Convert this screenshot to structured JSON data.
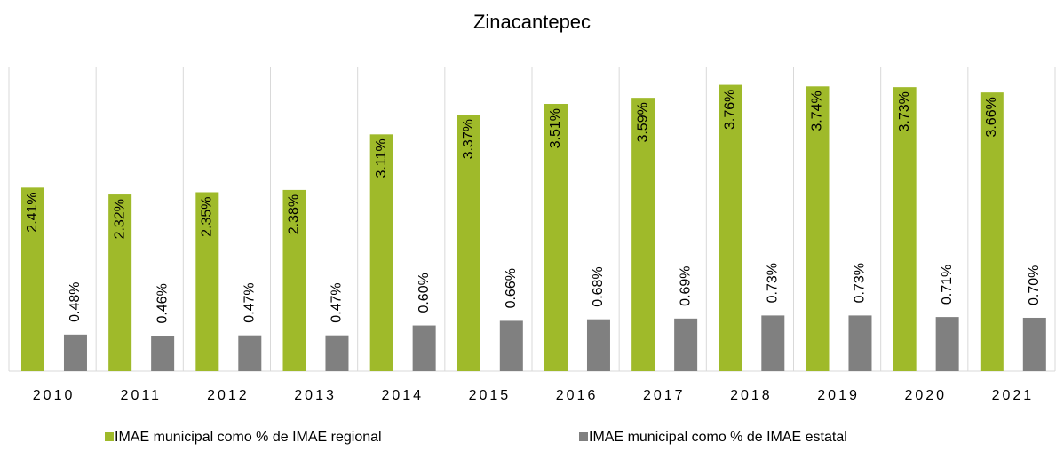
{
  "chart_data": {
    "type": "bar",
    "title": "Zinacantepec",
    "categories": [
      "2010",
      "2011",
      "2012",
      "2013",
      "2014",
      "2015",
      "2016",
      "2017",
      "2018",
      "2019",
      "2020",
      "2021"
    ],
    "series": [
      {
        "name": "IMAE municipal como % de IMAE regional",
        "color": "#9fba2a",
        "values": [
          2.41,
          2.32,
          2.35,
          2.38,
          3.11,
          3.37,
          3.51,
          3.59,
          3.76,
          3.74,
          3.73,
          3.66
        ],
        "value_labels": [
          "2.41%",
          "2.32%",
          "2.35%",
          "2.38%",
          "3.11%",
          "3.37%",
          "3.51%",
          "3.59%",
          "3.76%",
          "3.74%",
          "3.73%",
          "3.66%"
        ]
      },
      {
        "name": "IMAE municipal como % de IMAE estatal",
        "color": "#808080",
        "values": [
          0.48,
          0.46,
          0.47,
          0.47,
          0.6,
          0.66,
          0.68,
          0.69,
          0.73,
          0.73,
          0.71,
          0.7
        ],
        "value_labels": [
          "0.48%",
          "0.46%",
          "0.47%",
          "0.47%",
          "0.60%",
          "0.66%",
          "0.68%",
          "0.69%",
          "0.73%",
          "0.73%",
          "0.71%",
          "0.70%"
        ]
      }
    ],
    "ylim": [
      0,
      4
    ],
    "legend": "bottom"
  }
}
